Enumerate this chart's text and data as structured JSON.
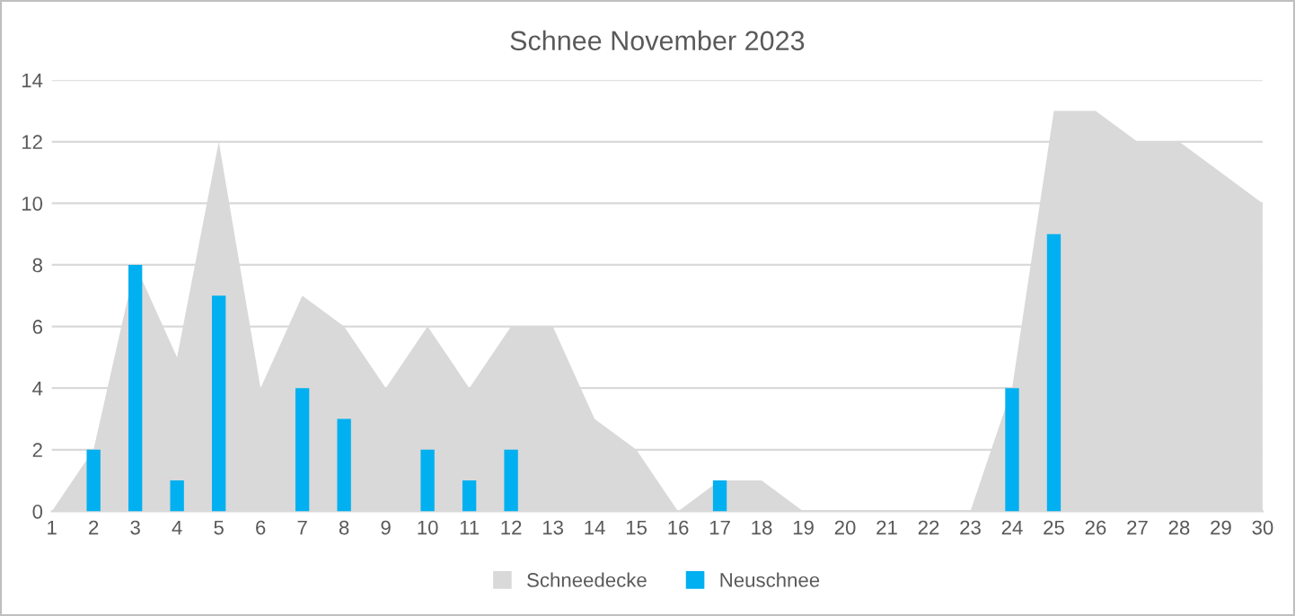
{
  "chart_data": {
    "type": "bar",
    "title": "Schnee November 2023",
    "categories": [
      "1",
      "2",
      "3",
      "4",
      "5",
      "6",
      "7",
      "8",
      "9",
      "10",
      "11",
      "12",
      "13",
      "14",
      "15",
      "16",
      "17",
      "18",
      "19",
      "20",
      "21",
      "22",
      "23",
      "24",
      "25",
      "26",
      "27",
      "28",
      "29",
      "30"
    ],
    "series": [
      {
        "name": "Schneedecke",
        "type": "area",
        "color": "#d9d9d9",
        "values": [
          0,
          2,
          8,
          5,
          12,
          4,
          7,
          6,
          4,
          6,
          4,
          6,
          6,
          3,
          2,
          0,
          1,
          1,
          0,
          0,
          0,
          0,
          0,
          4,
          13,
          13,
          12,
          12,
          11,
          10
        ]
      },
      {
        "name": "Neuschnee",
        "color": "#00b0f0",
        "values": [
          0,
          2,
          8,
          1,
          7,
          0,
          4,
          3,
          0,
          2,
          1,
          2,
          0,
          0,
          0,
          0,
          1,
          0,
          0,
          0,
          0,
          0,
          0,
          4,
          9,
          0,
          0,
          0,
          0,
          0
        ]
      }
    ],
    "ylim": [
      0,
      14
    ],
    "yticks": [
      0,
      2,
      4,
      6,
      8,
      10,
      12,
      14
    ],
    "grid": "y",
    "legend": "bottom"
  }
}
